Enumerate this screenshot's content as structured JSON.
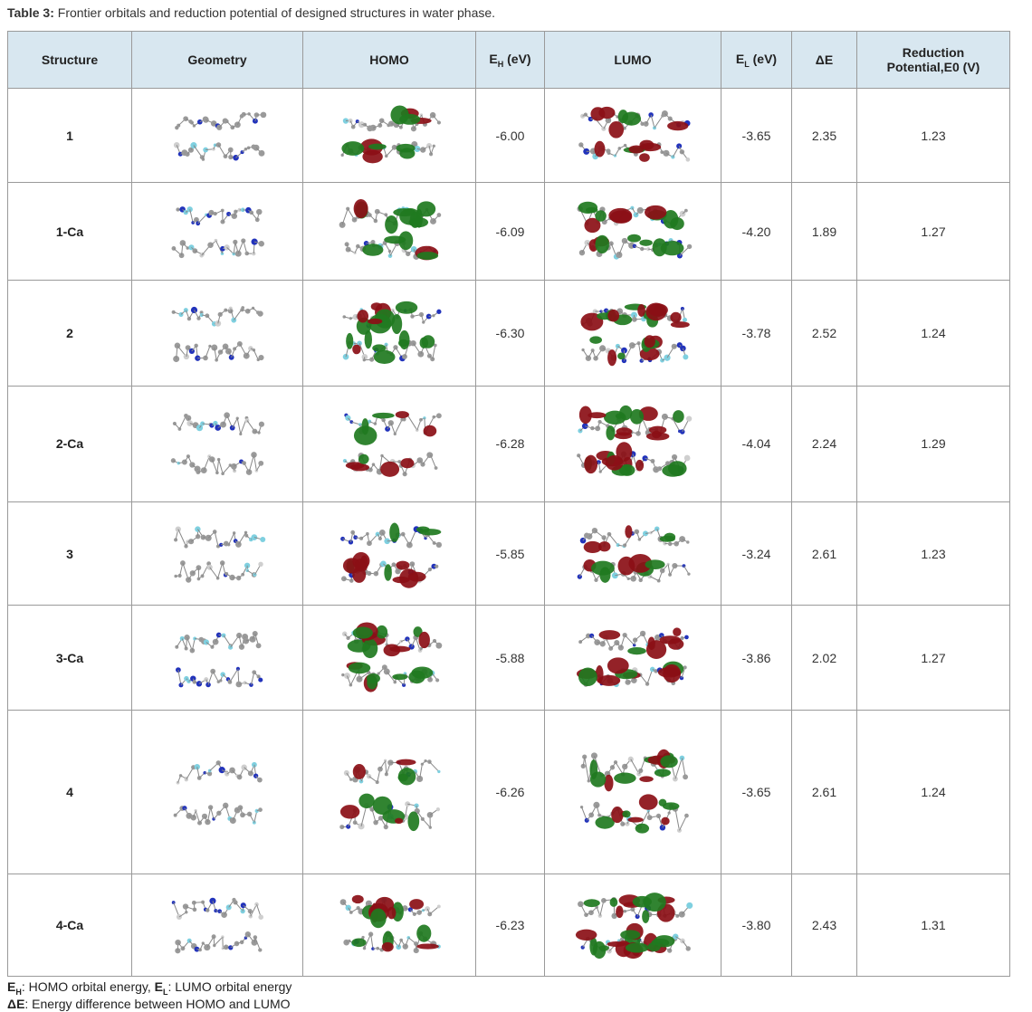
{
  "caption": {
    "label": "Table 3:",
    "text": "Frontier orbitals and reduction potential of designed structures in water phase."
  },
  "headers": {
    "structure": "Structure",
    "geometry": "Geometry",
    "homo": "HOMO",
    "eh_main": "E",
    "eh_sub": "H",
    "eh_unit": " (eV)",
    "lumo": "LUMO",
    "el_main": "E",
    "el_sub": "L",
    "el_unit": " (eV)",
    "de": "ΔE",
    "redpot": "Reduction Potential,E0 (V)"
  },
  "rows": [
    {
      "id": "1",
      "eh": "-6.00",
      "el": "-3.65",
      "de": "2.35",
      "e0": "1.23"
    },
    {
      "id": "1-Ca",
      "eh": "-6.09",
      "el": "-4.20",
      "de": "1.89",
      "e0": "1.27"
    },
    {
      "id": "2",
      "eh": "-6.30",
      "el": "-3.78",
      "de": "2.52",
      "e0": "1.24"
    },
    {
      "id": "2-Ca",
      "eh": "-6.28",
      "el": "-4.04",
      "de": "2.24",
      "e0": "1.29"
    },
    {
      "id": "3",
      "eh": "-5.85",
      "el": "-3.24",
      "de": "2.61",
      "e0": "1.23"
    },
    {
      "id": "3-Ca",
      "eh": "-5.88",
      "el": "-3.86",
      "de": "2.02",
      "e0": "1.27"
    },
    {
      "id": "4",
      "eh": "-6.26",
      "el": "-3.65",
      "de": "2.61",
      "e0": "1.24"
    },
    {
      "id": "4-Ca",
      "eh": "-6.23",
      "el": "-3.80",
      "de": "2.43",
      "e0": "1.31"
    }
  ],
  "footnotes": {
    "line1_eh_main": "E",
    "line1_eh_sub": "H",
    "line1_eh_text": ": HOMO orbital energy, ",
    "line1_el_main": "E",
    "line1_el_sub": "L",
    "line1_el_text": ": LUMO orbital energy",
    "line2_de": "ΔE",
    "line2_text": ": Energy difference between HOMO and LUMO"
  },
  "colors": {
    "header_bg": "#d8e7f0",
    "grid": "#9a9a9a",
    "orbital_red": "#8b0f16",
    "orbital_green": "#1f7a1f",
    "atom_gray": "#9a9a9a",
    "atom_blue": "#2233bb",
    "atom_yellow": "#c8b400",
    "atom_red": "#cc1111",
    "atom_cyan": "#7fd0e0"
  }
}
